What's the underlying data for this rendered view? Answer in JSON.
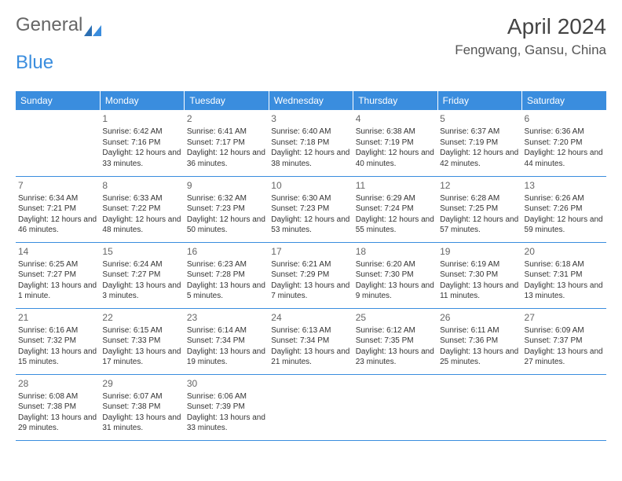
{
  "brand": {
    "part1": "General",
    "part2": "Blue"
  },
  "header": {
    "title": "April 2024",
    "location": "Fengwang, Gansu, China"
  },
  "colors": {
    "accent": "#3a8dde",
    "text": "#333333",
    "muted": "#666666",
    "background": "#ffffff"
  },
  "weekdays": [
    "Sunday",
    "Monday",
    "Tuesday",
    "Wednesday",
    "Thursday",
    "Friday",
    "Saturday"
  ],
  "layout": {
    "first_day_col": 1,
    "days_in_month": 30,
    "rows": 5,
    "cols": 7
  },
  "days": [
    {
      "n": 1,
      "sunrise": "6:42 AM",
      "sunset": "7:16 PM",
      "daylight": "12 hours and 33 minutes."
    },
    {
      "n": 2,
      "sunrise": "6:41 AM",
      "sunset": "7:17 PM",
      "daylight": "12 hours and 36 minutes."
    },
    {
      "n": 3,
      "sunrise": "6:40 AM",
      "sunset": "7:18 PM",
      "daylight": "12 hours and 38 minutes."
    },
    {
      "n": 4,
      "sunrise": "6:38 AM",
      "sunset": "7:19 PM",
      "daylight": "12 hours and 40 minutes."
    },
    {
      "n": 5,
      "sunrise": "6:37 AM",
      "sunset": "7:19 PM",
      "daylight": "12 hours and 42 minutes."
    },
    {
      "n": 6,
      "sunrise": "6:36 AM",
      "sunset": "7:20 PM",
      "daylight": "12 hours and 44 minutes."
    },
    {
      "n": 7,
      "sunrise": "6:34 AM",
      "sunset": "7:21 PM",
      "daylight": "12 hours and 46 minutes."
    },
    {
      "n": 8,
      "sunrise": "6:33 AM",
      "sunset": "7:22 PM",
      "daylight": "12 hours and 48 minutes."
    },
    {
      "n": 9,
      "sunrise": "6:32 AM",
      "sunset": "7:23 PM",
      "daylight": "12 hours and 50 minutes."
    },
    {
      "n": 10,
      "sunrise": "6:30 AM",
      "sunset": "7:23 PM",
      "daylight": "12 hours and 53 minutes."
    },
    {
      "n": 11,
      "sunrise": "6:29 AM",
      "sunset": "7:24 PM",
      "daylight": "12 hours and 55 minutes."
    },
    {
      "n": 12,
      "sunrise": "6:28 AM",
      "sunset": "7:25 PM",
      "daylight": "12 hours and 57 minutes."
    },
    {
      "n": 13,
      "sunrise": "6:26 AM",
      "sunset": "7:26 PM",
      "daylight": "12 hours and 59 minutes."
    },
    {
      "n": 14,
      "sunrise": "6:25 AM",
      "sunset": "7:27 PM",
      "daylight": "13 hours and 1 minute."
    },
    {
      "n": 15,
      "sunrise": "6:24 AM",
      "sunset": "7:27 PM",
      "daylight": "13 hours and 3 minutes."
    },
    {
      "n": 16,
      "sunrise": "6:23 AM",
      "sunset": "7:28 PM",
      "daylight": "13 hours and 5 minutes."
    },
    {
      "n": 17,
      "sunrise": "6:21 AM",
      "sunset": "7:29 PM",
      "daylight": "13 hours and 7 minutes."
    },
    {
      "n": 18,
      "sunrise": "6:20 AM",
      "sunset": "7:30 PM",
      "daylight": "13 hours and 9 minutes."
    },
    {
      "n": 19,
      "sunrise": "6:19 AM",
      "sunset": "7:30 PM",
      "daylight": "13 hours and 11 minutes."
    },
    {
      "n": 20,
      "sunrise": "6:18 AM",
      "sunset": "7:31 PM",
      "daylight": "13 hours and 13 minutes."
    },
    {
      "n": 21,
      "sunrise": "6:16 AM",
      "sunset": "7:32 PM",
      "daylight": "13 hours and 15 minutes."
    },
    {
      "n": 22,
      "sunrise": "6:15 AM",
      "sunset": "7:33 PM",
      "daylight": "13 hours and 17 minutes."
    },
    {
      "n": 23,
      "sunrise": "6:14 AM",
      "sunset": "7:34 PM",
      "daylight": "13 hours and 19 minutes."
    },
    {
      "n": 24,
      "sunrise": "6:13 AM",
      "sunset": "7:34 PM",
      "daylight": "13 hours and 21 minutes."
    },
    {
      "n": 25,
      "sunrise": "6:12 AM",
      "sunset": "7:35 PM",
      "daylight": "13 hours and 23 minutes."
    },
    {
      "n": 26,
      "sunrise": "6:11 AM",
      "sunset": "7:36 PM",
      "daylight": "13 hours and 25 minutes."
    },
    {
      "n": 27,
      "sunrise": "6:09 AM",
      "sunset": "7:37 PM",
      "daylight": "13 hours and 27 minutes."
    },
    {
      "n": 28,
      "sunrise": "6:08 AM",
      "sunset": "7:38 PM",
      "daylight": "13 hours and 29 minutes."
    },
    {
      "n": 29,
      "sunrise": "6:07 AM",
      "sunset": "7:38 PM",
      "daylight": "13 hours and 31 minutes."
    },
    {
      "n": 30,
      "sunrise": "6:06 AM",
      "sunset": "7:39 PM",
      "daylight": "13 hours and 33 minutes."
    }
  ],
  "labels": {
    "sunrise": "Sunrise:",
    "sunset": "Sunset:",
    "daylight": "Daylight:"
  }
}
